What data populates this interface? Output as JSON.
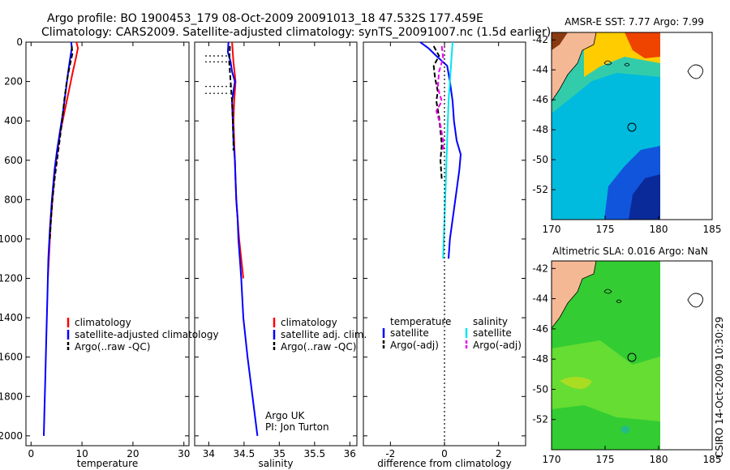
{
  "title_line1": "Argo profile: BO 1900453_179 08-Oct-2009 20091013_18 47.532S 177.459E",
  "title_line2": "Climatology: CARS2009. Satellite-adjusted climatology: synTS_20091007.nc (1.5d earlier)",
  "side_label": "CSIRO 14-Oct-2009 10:30:29",
  "colors": {
    "climatology": "#ff0000",
    "satellite": "#0000ff",
    "argo": "#000000",
    "sat_salinity": "#00e5ee",
    "argo_salinity_adj": "#ee00ee",
    "land": "#f5b895"
  },
  "chart_data": [
    {
      "id": "temperature",
      "type": "line",
      "xlabel": "temperature",
      "xlim": [
        -1,
        31
      ],
      "ylim": [
        2050,
        0
      ],
      "xticks": [
        0,
        10,
        20,
        30
      ],
      "xtick_labels": [
        "0",
        "10",
        "20",
        "30"
      ],
      "yticks": [
        0,
        200,
        400,
        600,
        800,
        1000,
        1200,
        1400,
        1600,
        1800,
        2000
      ],
      "ytick_labels": [
        "0",
        "200",
        "400",
        "600",
        "800",
        "1000",
        "1200",
        "1400",
        "1600",
        "1800",
        "2000"
      ],
      "legend": [
        {
          "label": "climatology",
          "color": "#ff0000",
          "dash": "solid"
        },
        {
          "label": "satellite-adjusted climatology",
          "color": "#0000ff",
          "dash": "solid"
        },
        {
          "label": "Argo(..raw -QC)",
          "color": "#000000",
          "dash": "dashed"
        }
      ],
      "series": [
        {
          "name": "climatology",
          "color": "#ff0000",
          "dash": "solid",
          "points": [
            [
              8.9,
              0
            ],
            [
              9.2,
              30
            ],
            [
              8.8,
              80
            ],
            [
              8.2,
              150
            ],
            [
              7.4,
              250
            ],
            [
              6.6,
              350
            ],
            [
              5.8,
              450
            ],
            [
              5.2,
              550
            ],
            [
              4.7,
              650
            ],
            [
              4.2,
              800
            ],
            [
              3.8,
              950
            ],
            [
              3.5,
              1100
            ],
            [
              3.3,
              1200
            ]
          ]
        },
        {
          "name": "satellite-adjusted climatology",
          "color": "#0000ff",
          "dash": "solid",
          "points": [
            [
              7.9,
              0
            ],
            [
              8.0,
              30
            ],
            [
              7.7,
              80
            ],
            [
              7.3,
              150
            ],
            [
              6.8,
              250
            ],
            [
              6.3,
              350
            ],
            [
              5.7,
              450
            ],
            [
              5.1,
              550
            ],
            [
              4.6,
              650
            ],
            [
              4.1,
              800
            ],
            [
              3.7,
              950
            ],
            [
              3.4,
              1100
            ],
            [
              3.2,
              1300
            ],
            [
              3.0,
              1500
            ],
            [
              2.8,
              1700
            ],
            [
              2.6,
              1900
            ],
            [
              2.5,
              2000
            ]
          ]
        },
        {
          "name": "Argo(..raw -QC)",
          "color": "#000000",
          "dash": "dashed",
          "points": [
            [
              8.0,
              20
            ],
            [
              8.1,
              60
            ],
            [
              7.6,
              120
            ],
            [
              7.0,
              200
            ],
            [
              6.5,
              300
            ],
            [
              6.1,
              400
            ],
            [
              5.6,
              500
            ],
            [
              5.1,
              600
            ],
            [
              4.6,
              700
            ],
            [
              4.2,
              800
            ],
            [
              3.9,
              900
            ],
            [
              3.7,
              1000
            ]
          ]
        }
      ]
    },
    {
      "id": "salinity",
      "type": "line",
      "xlabel": "salinity",
      "xlim": [
        33.8,
        36.1
      ],
      "ylim": [
        2050,
        0
      ],
      "xticks": [
        34,
        34.5,
        35,
        35.5,
        36
      ],
      "xtick_labels": [
        "34",
        "34.5",
        "35",
        "35.5",
        "36"
      ],
      "legend": [
        {
          "label": "climatology",
          "color": "#ff0000",
          "dash": "solid"
        },
        {
          "label": "satellite adj. clim.",
          "color": "#0000ff",
          "dash": "solid"
        },
        {
          "label": "Argo(..raw -QC)",
          "color": "#000000",
          "dash": "dashed"
        }
      ],
      "annotation": [
        "Argo UK",
        "PI: Jon Turton"
      ],
      "series": [
        {
          "name": "climatology",
          "color": "#ff0000",
          "dash": "solid",
          "points": [
            [
              34.33,
              0
            ],
            [
              34.35,
              100
            ],
            [
              34.38,
              200
            ],
            [
              34.36,
              300
            ],
            [
              34.35,
              400
            ],
            [
              34.36,
              500
            ],
            [
              34.37,
              600
            ],
            [
              34.38,
              700
            ],
            [
              34.39,
              800
            ],
            [
              34.41,
              900
            ],
            [
              34.43,
              1000
            ],
            [
              34.46,
              1100
            ],
            [
              34.49,
              1200
            ]
          ]
        },
        {
          "name": "satellite adj. clim.",
          "color": "#0000ff",
          "dash": "solid",
          "points": [
            [
              34.28,
              0
            ],
            [
              34.27,
              50
            ],
            [
              34.31,
              100
            ],
            [
              34.33,
              150
            ],
            [
              34.37,
              200
            ],
            [
              34.35,
              250
            ],
            [
              34.33,
              300
            ],
            [
              34.34,
              400
            ],
            [
              34.35,
              500
            ],
            [
              34.37,
              600
            ],
            [
              34.38,
              700
            ],
            [
              34.39,
              800
            ],
            [
              34.41,
              900
            ],
            [
              34.42,
              1000
            ],
            [
              34.44,
              1100
            ],
            [
              34.46,
              1200
            ],
            [
              34.49,
              1400
            ],
            [
              34.55,
              1600
            ],
            [
              34.62,
              1800
            ],
            [
              34.69,
              2000
            ]
          ]
        },
        {
          "name": "Argo(..raw -QC)",
          "color": "#000000",
          "dash": "dashed",
          "points": [
            [
              34.3,
              20
            ],
            [
              34.29,
              100
            ],
            [
              34.31,
              200
            ],
            [
              34.33,
              300
            ],
            [
              34.34,
              400
            ],
            [
              34.35,
              500
            ],
            [
              34.35,
              550
            ]
          ]
        },
        {
          "name": "level-gaps",
          "color": "#000000",
          "dash": "dotted",
          "points": [
            [
              33.95,
              70
            ],
            [
              34.3,
              70
            ],
            [
              null,
              null
            ],
            [
              33.95,
              100
            ],
            [
              34.3,
              100
            ],
            [
              null,
              null
            ],
            [
              33.95,
              225
            ],
            [
              34.32,
              225
            ],
            [
              null,
              null
            ],
            [
              33.95,
              260
            ],
            [
              34.3,
              260
            ]
          ]
        }
      ]
    },
    {
      "id": "difference",
      "type": "line",
      "xlabel": "difference from climatology",
      "xlim": [
        -3,
        3
      ],
      "ylim": [
        2050,
        0
      ],
      "xticks": [
        -2,
        0,
        2
      ],
      "xtick_labels": [
        "-2",
        "0",
        "2"
      ],
      "legend": [
        {
          "label": "temperature",
          "color": null,
          "dash": "solid"
        },
        {
          "label": "salinity",
          "color": null,
          "dash": "solid"
        },
        {
          "label": "satellite",
          "color": "#0000ff",
          "dash": "solid"
        },
        {
          "label": "satellite",
          "color": "#00e5ee",
          "dash": "solid"
        },
        {
          "label": "Argo(-adj)",
          "color": "#000000",
          "dash": "dashed"
        },
        {
          "label": "Argo(-adj)",
          "color": "#ee00ee",
          "dash": "dashed"
        }
      ],
      "series": [
        {
          "name": "temperature satellite",
          "color": "#0000ff",
          "dash": "solid",
          "points": [
            [
              -0.9,
              0
            ],
            [
              -0.6,
              30
            ],
            [
              -0.3,
              70
            ],
            [
              0.1,
              120
            ],
            [
              0.2,
              200
            ],
            [
              0.3,
              300
            ],
            [
              0.35,
              400
            ],
            [
              0.45,
              500
            ],
            [
              0.6,
              570
            ],
            [
              0.55,
              650
            ],
            [
              0.45,
              750
            ],
            [
              0.35,
              850
            ],
            [
              0.2,
              1000
            ],
            [
              0.15,
              1100
            ]
          ]
        },
        {
          "name": "temperature Argo(-adj)",
          "color": "#000000",
          "dash": "dashed",
          "points": [
            [
              -0.4,
              20
            ],
            [
              -0.2,
              70
            ],
            [
              -0.4,
              120
            ],
            [
              -0.35,
              180
            ],
            [
              -0.25,
              250
            ],
            [
              -0.3,
              300
            ],
            [
              -0.2,
              380
            ],
            [
              -0.15,
              450
            ],
            [
              -0.1,
              520
            ],
            [
              -0.15,
              600
            ],
            [
              -0.1,
              700
            ]
          ]
        },
        {
          "name": "salinity satellite",
          "color": "#00e5ee",
          "dash": "solid",
          "points": [
            [
              0.3,
              0
            ],
            [
              0.25,
              100
            ],
            [
              0.2,
              200
            ],
            [
              0.15,
              300
            ],
            [
              0.1,
              500
            ],
            [
              0.05,
              700
            ],
            [
              0.0,
              900
            ],
            [
              -0.05,
              1100
            ]
          ]
        },
        {
          "name": "salinity Argo(-adj)",
          "color": "#ee00ee",
          "dash": "dashed",
          "points": [
            [
              -0.1,
              20
            ],
            [
              -0.05,
              80
            ],
            [
              -0.2,
              150
            ],
            [
              -0.25,
              230
            ],
            [
              -0.1,
              300
            ],
            [
              -0.3,
              350
            ],
            [
              -0.15,
              420
            ],
            [
              -0.05,
              500
            ],
            [
              -0.05,
              560
            ]
          ]
        },
        {
          "name": "zero-line",
          "color": "#000000",
          "dash": "dotted",
          "points": [
            [
              0,
              0
            ],
            [
              0,
              2050
            ]
          ]
        }
      ]
    },
    {
      "id": "sst-map",
      "type": "heatmap",
      "title": "AMSR-E SST: 7.77 Argo: 7.99",
      "xlim": [
        170,
        185
      ],
      "ylim": [
        -54,
        -41.5
      ],
      "xticks": [
        170,
        175,
        180,
        185
      ],
      "xtick_labels": [
        "170",
        "175",
        "180",
        "185"
      ],
      "yticks": [
        -42,
        -44,
        -46,
        -48,
        -50,
        -52
      ],
      "ytick_labels": [
        "-42",
        "-44",
        "-46",
        "-48",
        "-50",
        "-52"
      ],
      "float_position": [
        177.459,
        -47.532
      ]
    },
    {
      "id": "sla-map",
      "type": "heatmap",
      "title": "Altimetric SLA: 0.016 Argo: NaN",
      "xlim": [
        170,
        185
      ],
      "ylim": [
        -54,
        -41.5
      ],
      "xticks": [
        170,
        175,
        180,
        185
      ],
      "xtick_labels": [
        "170",
        "175",
        "180",
        "185"
      ],
      "yticks": [
        -42,
        -44,
        -46,
        -48,
        -50,
        -52
      ],
      "ytick_labels": [
        "-42",
        "-44",
        "-46",
        "-48",
        "-50",
        "-52"
      ],
      "float_position": [
        177.459,
        -47.532
      ]
    }
  ]
}
